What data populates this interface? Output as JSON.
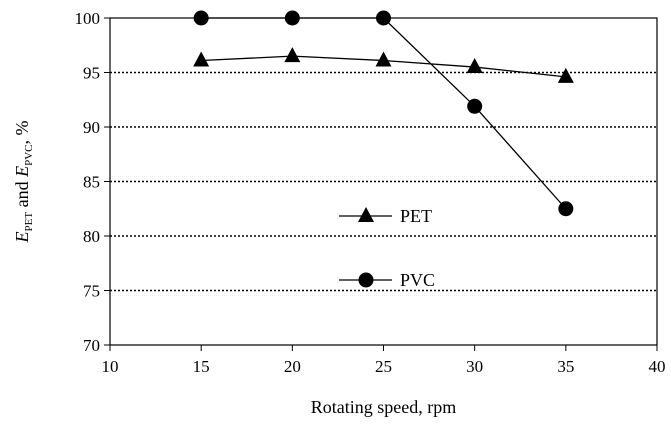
{
  "chart_data": {
    "type": "line",
    "xlabel": "Rotating speed, rpm",
    "ylabel": {
      "prefix1": "E",
      "sub1": "PET",
      "middle": " and ",
      "prefix2": "E",
      "sub2": "PVC",
      "suffix": ", %"
    },
    "xlim": [
      10,
      40
    ],
    "ylim": [
      70,
      100
    ],
    "x_ticks": [
      "10",
      "15",
      "20",
      "25",
      "30",
      "35",
      "40"
    ],
    "y_ticks": [
      "70",
      "75",
      "80",
      "85",
      "90",
      "95",
      "100"
    ],
    "grid": "horizontal dotted",
    "legend_placement": "center",
    "series": [
      {
        "name": "PET",
        "marker": "triangle",
        "color": "#000000",
        "x": [
          15,
          20,
          25,
          30,
          35
        ],
        "y": [
          96.1,
          96.5,
          96.1,
          95.5,
          94.6
        ]
      },
      {
        "name": "PVC",
        "marker": "circle",
        "color": "#000000",
        "x": [
          15,
          20,
          25,
          30,
          35
        ],
        "y": [
          100,
          100,
          100,
          91.9,
          82.5
        ]
      }
    ]
  }
}
